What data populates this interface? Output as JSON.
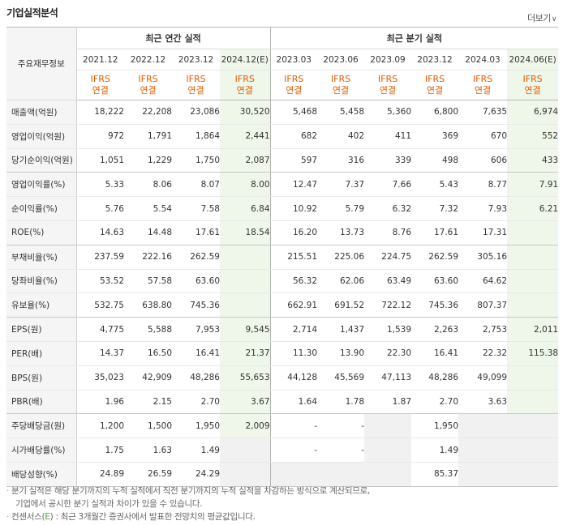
{
  "title": "기업실적분석",
  "more_label": "더보기",
  "more_icon": "chevron-down-icon",
  "header": {
    "row_header": "주요재무정보",
    "annual_label": "최근 연간 실적",
    "quarter_label": "최근 분기 실적",
    "annual_periods": [
      "2021.12",
      "2022.12",
      "2023.12",
      "2024.12(E)"
    ],
    "quarter_periods": [
      "2023.03",
      "2023.06",
      "2023.09",
      "2023.12",
      "2024.03",
      "2024.06(E)"
    ],
    "ifrs_label": "IFRS",
    "consol_label": "연결"
  },
  "rows": [
    {
      "label": "매출액(억원)",
      "values": [
        "18,222",
        "22,208",
        "23,086",
        "30,520",
        "5,468",
        "5,458",
        "5,360",
        "6,800",
        "7,635",
        "6,974"
      ]
    },
    {
      "label": "영업이익(억원)",
      "values": [
        "972",
        "1,791",
        "1,864",
        "2,441",
        "682",
        "402",
        "411",
        "369",
        "670",
        "552"
      ]
    },
    {
      "label": "당기순이익(억원)",
      "values": [
        "1,051",
        "1,229",
        "1,750",
        "2,087",
        "597",
        "316",
        "339",
        "498",
        "606",
        "433"
      ]
    },
    {
      "label": "영업이익률(%)",
      "values": [
        "5.33",
        "8.06",
        "8.07",
        "8.00",
        "12.47",
        "7.37",
        "7.66",
        "5.43",
        "8.77",
        "7.91"
      ]
    },
    {
      "label": "순이익률(%)",
      "values": [
        "5.76",
        "5.54",
        "7.58",
        "6.84",
        "10.92",
        "5.79",
        "6.32",
        "7.32",
        "7.93",
        "6.21"
      ]
    },
    {
      "label": "ROE(%)",
      "values": [
        "14.63",
        "14.48",
        "17.61",
        "18.54",
        "16.20",
        "13.73",
        "8.76",
        "17.61",
        "17.31",
        ""
      ]
    },
    {
      "label": "부채비율(%)",
      "values": [
        "237.59",
        "222.16",
        "262.59",
        "",
        "215.51",
        "225.06",
        "224.75",
        "262.59",
        "305.16",
        ""
      ]
    },
    {
      "label": "당좌비율(%)",
      "values": [
        "53.52",
        "57.58",
        "63.60",
        "",
        "56.32",
        "62.06",
        "63.49",
        "63.60",
        "64.62",
        ""
      ]
    },
    {
      "label": "유보율(%)",
      "values": [
        "532.75",
        "638.80",
        "745.36",
        "",
        "662.91",
        "691.52",
        "722.12",
        "745.36",
        "807.37",
        ""
      ]
    },
    {
      "label": "EPS(원)",
      "values": [
        "4,775",
        "5,588",
        "7,953",
        "9,545",
        "2,714",
        "1,437",
        "1,539",
        "2,263",
        "2,753",
        "2,011"
      ]
    },
    {
      "label": "PER(배)",
      "values": [
        "14.37",
        "16.50",
        "16.41",
        "21.37",
        "11.30",
        "13.90",
        "22.30",
        "16.41",
        "22.32",
        "115.38"
      ]
    },
    {
      "label": "BPS(원)",
      "values": [
        "35,023",
        "42,909",
        "48,286",
        "55,653",
        "44,128",
        "45,569",
        "47,113",
        "48,286",
        "49,099",
        ""
      ]
    },
    {
      "label": "PBR(배)",
      "values": [
        "1.96",
        "2.15",
        "2.70",
        "3.67",
        "1.64",
        "1.78",
        "1.87",
        "2.70",
        "3.63",
        ""
      ]
    },
    {
      "label": "주당배당금(원)",
      "values": [
        "1,200",
        "1,500",
        "1,950",
        "2,009",
        "-",
        "-",
        "",
        "1,950",
        "",
        ""
      ]
    },
    {
      "label": "시가배당률(%)",
      "values": [
        "1.75",
        "1.63",
        "1.49",
        "",
        "-",
        "-",
        "",
        "1.49",
        "",
        ""
      ]
    },
    {
      "label": "배당성향(%)",
      "values": [
        "24.89",
        "26.59",
        "24.29",
        "",
        "",
        "",
        "",
        "85.37",
        "",
        ""
      ]
    }
  ],
  "notes": {
    "line1": "분기 실적은 해당 분기까지의 누적 실적에서 직전 분기까지의 누적 실적을 차감하는 방식으로 계산되므로,",
    "line2": "기업에서 공시한 분기 실적과 차이가 있을 수 있습니다.",
    "line3_prefix": "컨센서스(",
    "line3_mark": "E",
    "line3_suffix": ") : 최근 3개월간 증권사에서 발표한 전망치의 평균값입니다."
  }
}
